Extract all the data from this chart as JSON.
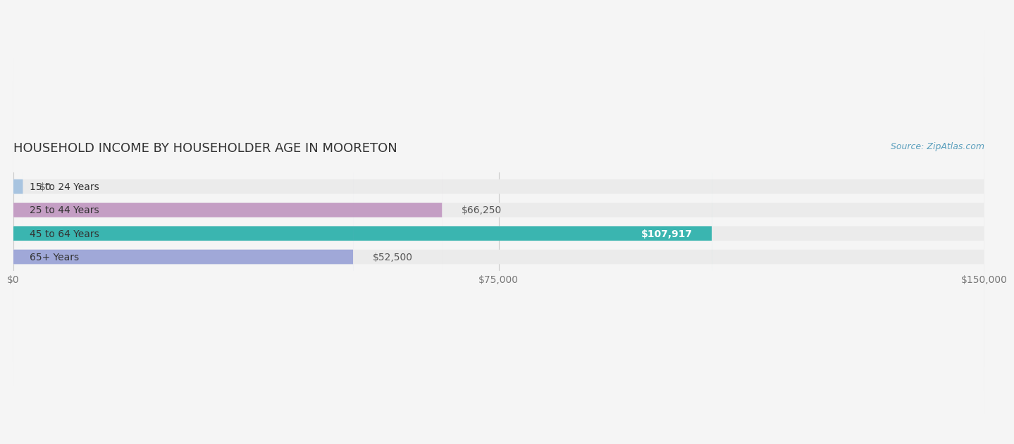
{
  "title": "HOUSEHOLD INCOME BY HOUSEHOLDER AGE IN MOORETON",
  "source": "Source: ZipAtlas.com",
  "categories": [
    "15 to 24 Years",
    "25 to 44 Years",
    "45 to 64 Years",
    "65+ Years"
  ],
  "values": [
    0,
    66250,
    107917,
    52500
  ],
  "bar_colors": [
    "#a8c4e0",
    "#c49ec4",
    "#3ab5b0",
    "#a0a8d8"
  ],
  "bar_labels": [
    "$0",
    "$66,250",
    "$107,917",
    "$52,500"
  ],
  "label_colors": [
    "#555555",
    "#555555",
    "#ffffff",
    "#555555"
  ],
  "xlim": [
    0,
    150000
  ],
  "xticks": [
    0,
    75000,
    150000
  ],
  "xtick_labels": [
    "$0",
    "$75,000",
    "$150,000"
  ],
  "background_color": "#f5f5f5",
  "bar_background_color": "#ebebeb",
  "title_fontsize": 13,
  "tick_fontsize": 10,
  "label_fontsize": 10,
  "source_fontsize": 9
}
